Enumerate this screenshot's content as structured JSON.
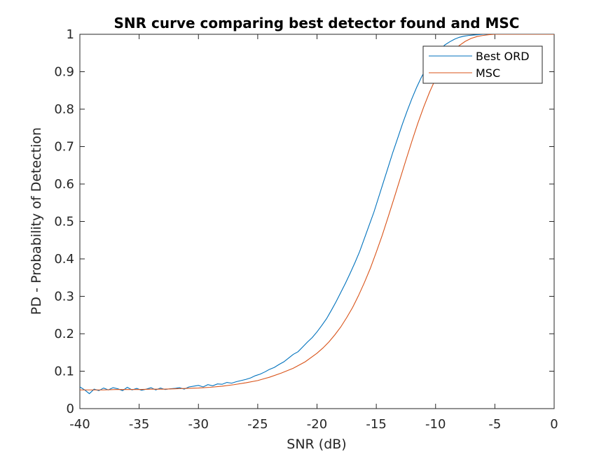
{
  "chart_data": {
    "type": "line",
    "title": "SNR curve comparing best detector found and MSC",
    "xlabel": "SNR (dB)",
    "ylabel": "PD - Probability of Detection",
    "xlim": [
      -40,
      0
    ],
    "ylim": [
      0,
      1
    ],
    "x_ticks": [
      -40,
      -35,
      -30,
      -25,
      -20,
      -15,
      -10,
      -5,
      0
    ],
    "y_ticks": [
      0,
      0.1,
      0.2,
      0.3,
      0.4,
      0.5,
      0.6,
      0.7,
      0.8,
      0.9,
      1
    ],
    "x_tick_labels": [
      "-40",
      "-35",
      "-30",
      "-25",
      "-20",
      "-15",
      "-10",
      "-5",
      "0"
    ],
    "y_tick_labels": [
      "0",
      "0.1",
      "0.2",
      "0.3",
      "0.4",
      "0.5",
      "0.6",
      "0.7",
      "0.8",
      "0.9",
      "1"
    ],
    "grid": false,
    "legend_position": "top-right",
    "series": [
      {
        "name": "Best ORD",
        "color": "#0072BD",
        "x": [
          -40,
          -39.6,
          -39.2,
          -38.8,
          -38.4,
          -38,
          -37.6,
          -37.2,
          -36.8,
          -36.4,
          -36,
          -35.6,
          -35.2,
          -34.8,
          -34.4,
          -34,
          -33.6,
          -33.2,
          -32.8,
          -32.4,
          -32,
          -31.6,
          -31.2,
          -30.8,
          -30.4,
          -30,
          -29.6,
          -29.2,
          -28.8,
          -28.4,
          -28,
          -27.6,
          -27.2,
          -26.8,
          -26.4,
          -26,
          -25.6,
          -25.2,
          -24.8,
          -24.4,
          -24,
          -23.6,
          -23.2,
          -22.8,
          -22.4,
          -22,
          -21.6,
          -21.2,
          -20.8,
          -20.4,
          -20,
          -19.6,
          -19.2,
          -18.8,
          -18.4,
          -18,
          -17.6,
          -17.2,
          -16.8,
          -16.4,
          -16,
          -15.6,
          -15.2,
          -14.8,
          -14.4,
          -14,
          -13.6,
          -13.2,
          -12.8,
          -12.4,
          -12,
          -11.6,
          -11.2,
          -10.8,
          -10.4,
          -10,
          -9.6,
          -9.2,
          -8.8,
          -8.4,
          -8,
          -7.6,
          -7.2,
          -6.8,
          -6.4,
          -6,
          -5.6,
          -5.2,
          -4.8,
          -4.4,
          -4,
          -3.6,
          -3.2,
          -2.8,
          -2.4,
          -2,
          -1.6,
          -1.2,
          -0.8,
          -0.4,
          0
        ],
        "y": [
          0.058,
          0.05,
          0.04,
          0.052,
          0.048,
          0.055,
          0.05,
          0.056,
          0.053,
          0.048,
          0.057,
          0.05,
          0.054,
          0.049,
          0.052,
          0.056,
          0.05,
          0.055,
          0.051,
          0.053,
          0.054,
          0.056,
          0.052,
          0.058,
          0.06,
          0.062,
          0.058,
          0.064,
          0.061,
          0.066,
          0.065,
          0.07,
          0.068,
          0.072,
          0.075,
          0.078,
          0.082,
          0.088,
          0.092,
          0.098,
          0.105,
          0.11,
          0.118,
          0.125,
          0.135,
          0.145,
          0.152,
          0.165,
          0.178,
          0.19,
          0.205,
          0.222,
          0.24,
          0.262,
          0.285,
          0.31,
          0.335,
          0.362,
          0.39,
          0.42,
          0.455,
          0.49,
          0.525,
          0.565,
          0.605,
          0.645,
          0.685,
          0.722,
          0.76,
          0.795,
          0.828,
          0.858,
          0.885,
          0.908,
          0.928,
          0.946,
          0.96,
          0.972,
          0.98,
          0.987,
          0.992,
          0.995,
          0.997,
          0.998,
          0.999,
          1,
          1,
          1,
          1,
          1,
          1,
          1,
          1,
          1,
          1,
          1,
          1,
          1,
          1,
          1,
          1
        ]
      },
      {
        "name": "MSC",
        "color": "#D95319",
        "x": [
          -40,
          -39,
          -38,
          -37,
          -36,
          -35,
          -34,
          -33,
          -32,
          -31,
          -30,
          -29,
          -28,
          -27,
          -26,
          -25,
          -24,
          -23,
          -22,
          -21,
          -20,
          -19.5,
          -19,
          -18.5,
          -18,
          -17.5,
          -17,
          -16.5,
          -16,
          -15.5,
          -15,
          -14.5,
          -14,
          -13.5,
          -13,
          -12.5,
          -12,
          -11.5,
          -11,
          -10.5,
          -10,
          -9.5,
          -9,
          -8.5,
          -8,
          -7.5,
          -7,
          -6.5,
          -6,
          -5.5,
          -5,
          -4,
          -3,
          -2,
          -1,
          0
        ],
        "y": [
          0.05,
          0.05,
          0.05,
          0.051,
          0.051,
          0.051,
          0.052,
          0.052,
          0.053,
          0.054,
          0.055,
          0.057,
          0.06,
          0.064,
          0.069,
          0.075,
          0.084,
          0.095,
          0.108,
          0.125,
          0.148,
          0.162,
          0.178,
          0.197,
          0.218,
          0.243,
          0.27,
          0.302,
          0.337,
          0.375,
          0.418,
          0.463,
          0.512,
          0.562,
          0.613,
          0.664,
          0.714,
          0.762,
          0.806,
          0.846,
          0.881,
          0.911,
          0.936,
          0.955,
          0.97,
          0.981,
          0.989,
          0.994,
          0.997,
          0.999,
          1,
          1,
          1,
          1,
          1,
          1
        ]
      }
    ]
  }
}
